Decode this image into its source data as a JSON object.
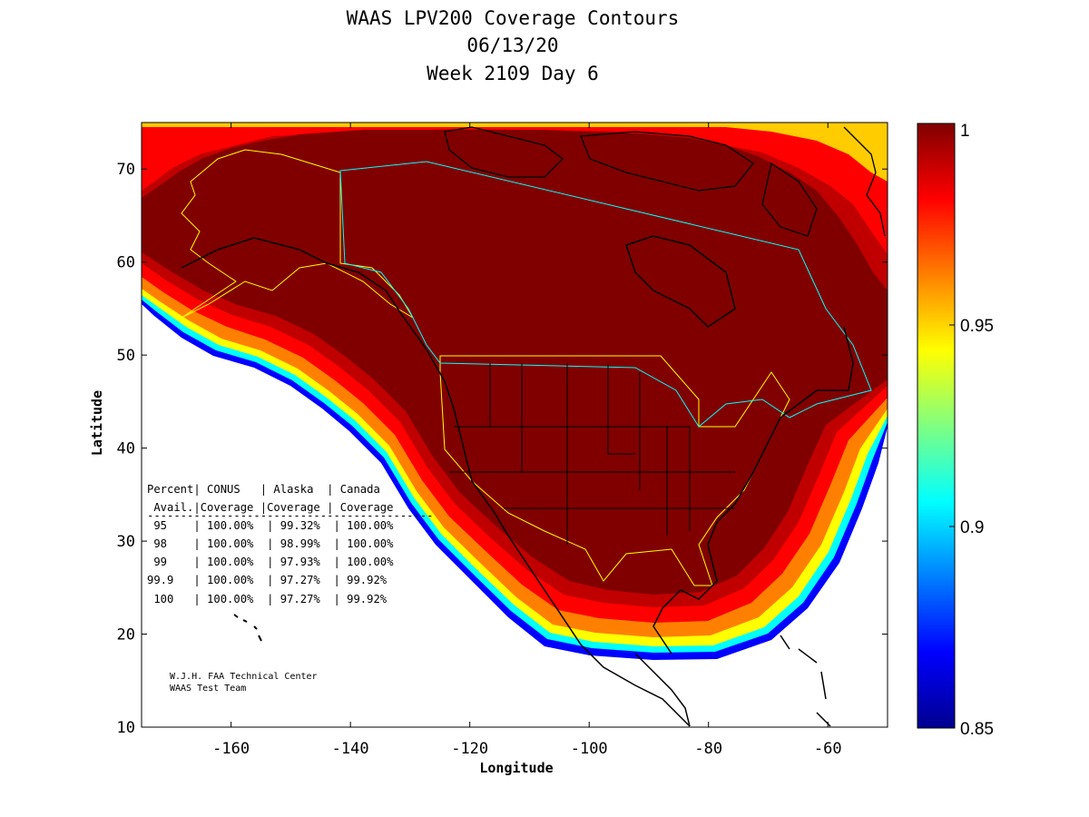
{
  "title": {
    "line1": "WAAS LPV200 Coverage Contours",
    "line2": "06/13/20",
    "line3": "Week 2109 Day 6"
  },
  "axes": {
    "xlabel": "Longitude",
    "ylabel": "Latitude",
    "xlim": [
      -175,
      -50
    ],
    "ylim": [
      10,
      75
    ],
    "xticks": [
      "-160",
      "-140",
      "-120",
      "-100",
      "-80",
      "-60"
    ],
    "yticks": [
      "10",
      "20",
      "30",
      "40",
      "50",
      "60",
      "70"
    ]
  },
  "colorbar": {
    "labels": [
      "1",
      "0.95",
      "0.9",
      "0.85"
    ],
    "range": [
      0.85,
      1.0
    ],
    "colormap": "jet"
  },
  "table": {
    "header1": "Percent| CONUS   | Alaska  | Canada",
    "header2": " Avail.|Coverage |Coverage | Coverage",
    "separator": "-------------------------------------------",
    "rows": [
      " 95    | 100.00%  | 99.32%  | 100.00%",
      " 98    | 100.00%  | 98.99%  | 100.00%",
      " 99    | 100.00%  | 97.93%  | 100.00%",
      "99.9   | 100.00%  | 97.27%  | 99.92%",
      " 100   | 100.00%  | 97.27%  | 99.92%"
    ]
  },
  "credit": {
    "line1": "W.J.H. FAA Technical Center",
    "line2": "WAAS Test Team"
  },
  "chart_data": {
    "type": "heatmap",
    "title": "WAAS LPV200 Coverage Contours",
    "xlabel": "Longitude",
    "ylabel": "Latitude",
    "xlim": [
      -175,
      -50
    ],
    "ylim": [
      10,
      75
    ],
    "colorbar_range": [
      0.85,
      1.0
    ],
    "regions": [
      {
        "region": "CONUS",
        "percent_avail": [
          "95",
          "98",
          "99",
          "99.9",
          "100"
        ],
        "coverage": [
          "100.00%",
          "100.00%",
          "100.00%",
          "100.00%",
          "100.00%"
        ]
      },
      {
        "region": "Alaska",
        "percent_avail": [
          "95",
          "98",
          "99",
          "99.9",
          "100"
        ],
        "coverage": [
          "99.32%",
          "98.99%",
          "97.93%",
          "97.27%",
          "97.27%"
        ]
      },
      {
        "region": "Canada",
        "percent_avail": [
          "95",
          "98",
          "99",
          "99.9",
          "100"
        ],
        "coverage": [
          "100.00%",
          "100.00%",
          "100.00%",
          "99.92%",
          "99.92%"
        ]
      }
    ]
  },
  "colors": {
    "full_coverage": "#800000",
    "background": "#ffffff",
    "border_us": "#ffff00",
    "border_canada": "#00ffff"
  }
}
